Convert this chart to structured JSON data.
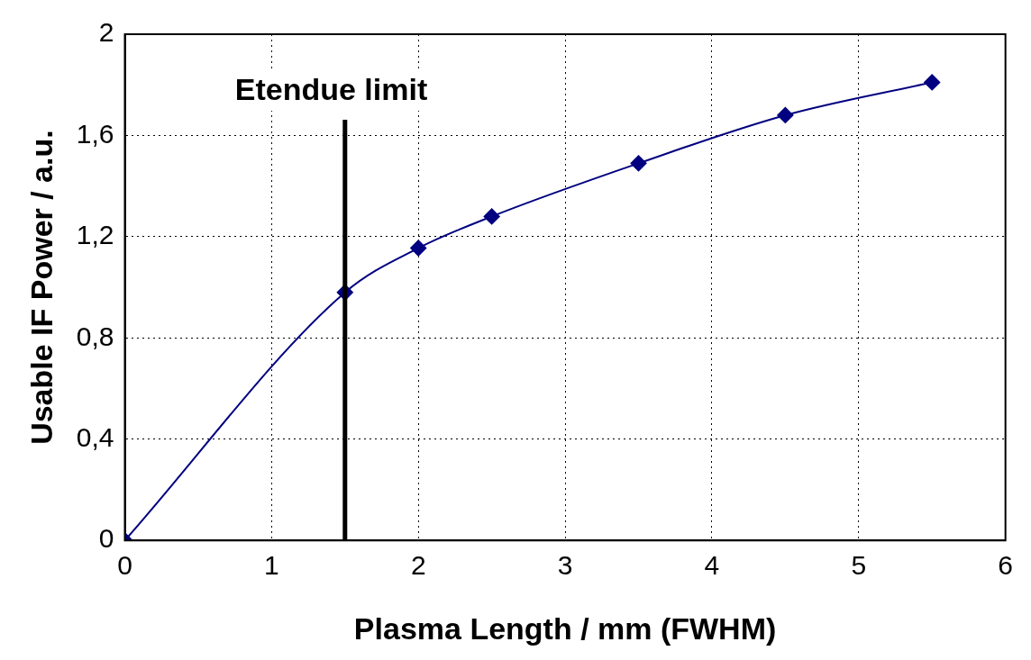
{
  "chart_data": {
    "type": "line",
    "xlabel": "Plasma Length / mm (FWHM)",
    "ylabel": "Usable IF Power / a.u.",
    "x": [
      0,
      1.5,
      2,
      2.5,
      3.5,
      4.5,
      5.5
    ],
    "series": [
      {
        "color": "#000080",
        "values": [
          0,
          0.98,
          1.155,
          1.28,
          1.49,
          1.68,
          1.81
        ]
      }
    ],
    "xlim": [
      0,
      6
    ],
    "xticks": [
      0,
      1,
      2,
      3,
      4,
      5,
      6
    ],
    "ylim": [
      0,
      2
    ],
    "yticks": [
      0,
      {
        "value": 0.4,
        "label": "0,4"
      },
      {
        "value": 0.8,
        "label": "0,8"
      },
      {
        "value": 1.2,
        "label": "1,2"
      },
      {
        "value": 1.6,
        "label": "1,6"
      },
      2
    ],
    "ref_lines": [
      {
        "axis": "x",
        "value": 1.5,
        "label": "Etendue limit",
        "color": "#000000"
      }
    ],
    "grid": true,
    "marker": "diamond",
    "line_style": "solid",
    "legend": false
  }
}
